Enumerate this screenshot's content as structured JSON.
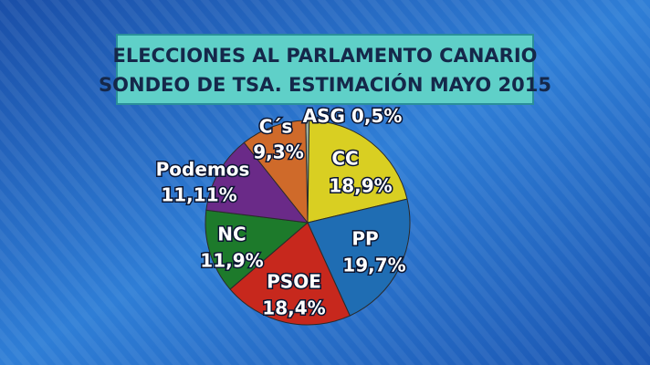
{
  "chart_data": {
    "type": "pie",
    "title": "ELECCIONES AL PARLAMENTO CANARIO",
    "subtitle": "SONDEO DE TSA. ESTIMACIÓN MAYO 2015",
    "categories": [
      "ASG",
      "CC",
      "PP",
      "PSOE",
      "NC",
      "Podemos",
      "C´s"
    ],
    "values": [
      0.5,
      18.9,
      19.7,
      18.4,
      11.9,
      11.11,
      9.3
    ],
    "value_labels": [
      "0,5%",
      "18,9%",
      "19,7%",
      "18,4%",
      "11,9%",
      "11,11%",
      "9,3%"
    ],
    "colors": [
      "#9ab0a0",
      "#d9cf22",
      "#1f6db3",
      "#c7281d",
      "#1d7a2b",
      "#6a2a88",
      "#cf6a2a"
    ]
  }
}
